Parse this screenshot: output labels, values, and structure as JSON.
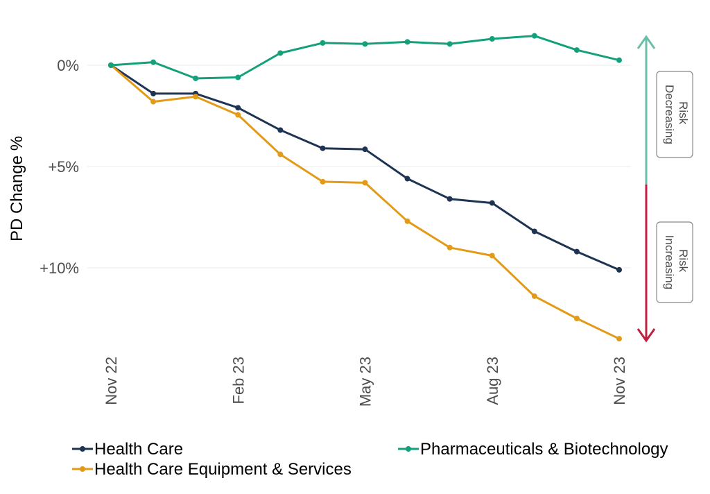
{
  "chart_data": {
    "type": "line",
    "ylabel": "PD Change %",
    "y_tick_labels": [
      "0%",
      "+5%",
      "+10%"
    ],
    "y_tick_values": [
      0,
      5,
      10
    ],
    "ylim": [
      -2,
      13.5
    ],
    "y_inverted": true,
    "grid": "horizontal",
    "x_tick_labels": [
      "Nov 22",
      "Feb 23",
      "May 23",
      "Aug 23",
      "Nov 23"
    ],
    "x_tick_indices": [
      0,
      3,
      6,
      9,
      12
    ],
    "x": [
      "Nov 22",
      "Dec 22",
      "Jan 23",
      "Feb 23",
      "Mar 23",
      "Apr 23",
      "May 23",
      "Jun 23",
      "Jul 23",
      "Aug 23",
      "Sep 23",
      "Oct 23",
      "Nov 23"
    ],
    "series": [
      {
        "name": "Health Care",
        "color": "#1f3352",
        "values": [
          0,
          1.4,
          1.4,
          2.1,
          3.2,
          4.1,
          4.15,
          5.6,
          6.6,
          6.8,
          8.2,
          9.2,
          10.1
        ]
      },
      {
        "name": "Health Care Equipment & Services",
        "color": "#e39b17",
        "values": [
          0,
          1.8,
          1.55,
          2.45,
          4.4,
          5.75,
          5.8,
          7.7,
          9.0,
          9.4,
          11.4,
          12.5,
          13.5
        ]
      },
      {
        "name": "Pharmaceuticals & Biotechnology",
        "color": "#14a07a",
        "values": [
          0,
          -0.15,
          0.65,
          0.6,
          -0.6,
          -1.1,
          -1.05,
          -1.15,
          -1.05,
          -1.3,
          -1.45,
          -0.75,
          -0.25
        ]
      }
    ],
    "legend": {
      "position": "bottom",
      "entries": [
        "Health Care",
        "Pharmaceuticals & Biotechnology",
        "Health Care Equipment & Services"
      ]
    },
    "annotations": {
      "decreasing": {
        "label": "Risk Decreasing",
        "lines": [
          "Risk",
          "Decreasing"
        ],
        "color": "#6bbfaa"
      },
      "increasing": {
        "label": "Risk Increasing",
        "lines": [
          "Risk",
          "Increasing"
        ],
        "color": "#c0203f"
      }
    }
  }
}
